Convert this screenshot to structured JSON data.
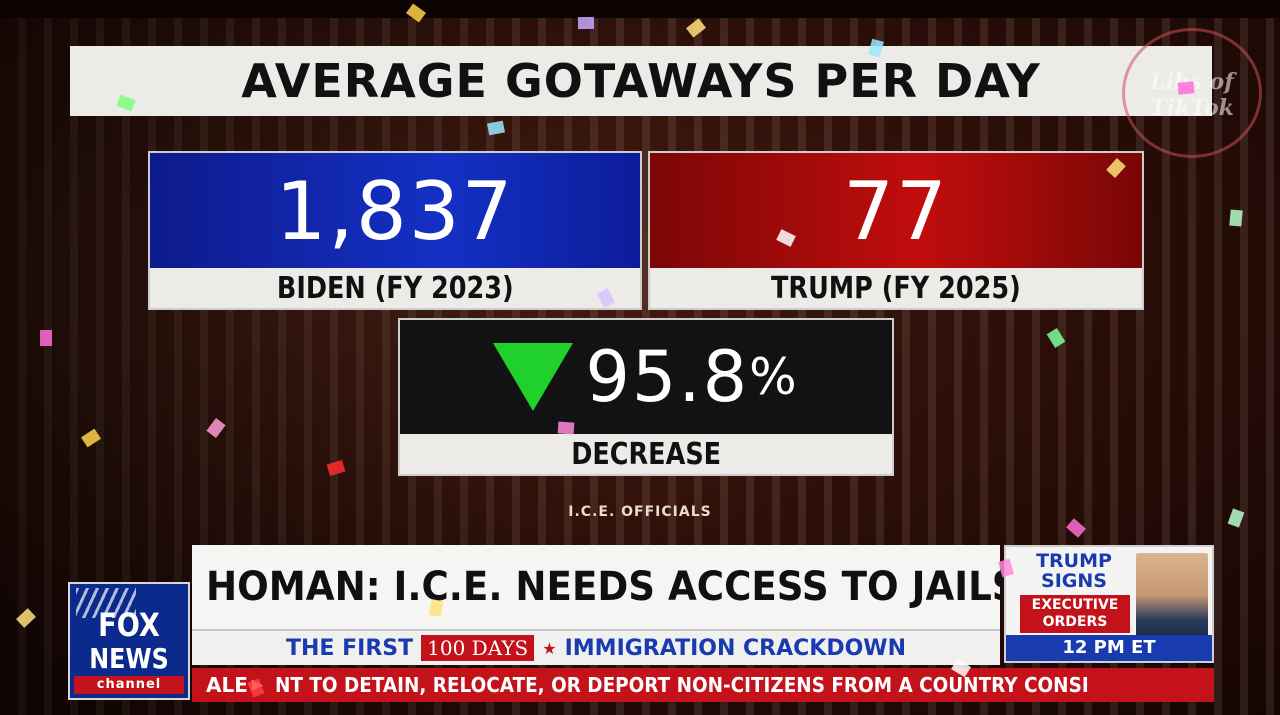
{
  "graphic": {
    "title": "AVERAGE GOTAWAYS PER DAY",
    "biden": {
      "value": "1,837",
      "label": "BIDEN (FY 2023)"
    },
    "trump": {
      "value": "77",
      "label": "TRUMP (FY 2025)"
    },
    "change": {
      "value": "95.8",
      "unit": "%",
      "label": "DECREASE",
      "direction": "down",
      "arrow_color": "#1fd12a"
    },
    "source": "I.C.E. OFFICIALS"
  },
  "lower_third": {
    "headline": "HOMAN: I.C.E. NEEDS ACCESS TO JAILS",
    "sub_left": "THE FIRST",
    "sub_badge": "100 DAYS",
    "sub_right": "IMMIGRATION CRACKDOWN"
  },
  "promo": {
    "line1": "TRUMP",
    "line2": "SIGNS",
    "badge1": "EXECUTIVE",
    "badge2": "ORDERS",
    "time": "12 PM ET"
  },
  "logo": {
    "word1": "FOX",
    "word2": "NEWS",
    "word3": "channel"
  },
  "ticker": {
    "label": "ALE",
    "text": "NT TO DETAIN, RELOCATE, OR DEPORT NON-CITIZENS FROM A COUNTRY CONSI"
  },
  "watermark": {
    "line1": "Libs of",
    "line2": "TikTok"
  },
  "colors": {
    "blue": "#1430c4",
    "red": "#c10d0d",
    "fox_red": "#c3121a",
    "fox_blue": "#1a3bb0"
  }
}
